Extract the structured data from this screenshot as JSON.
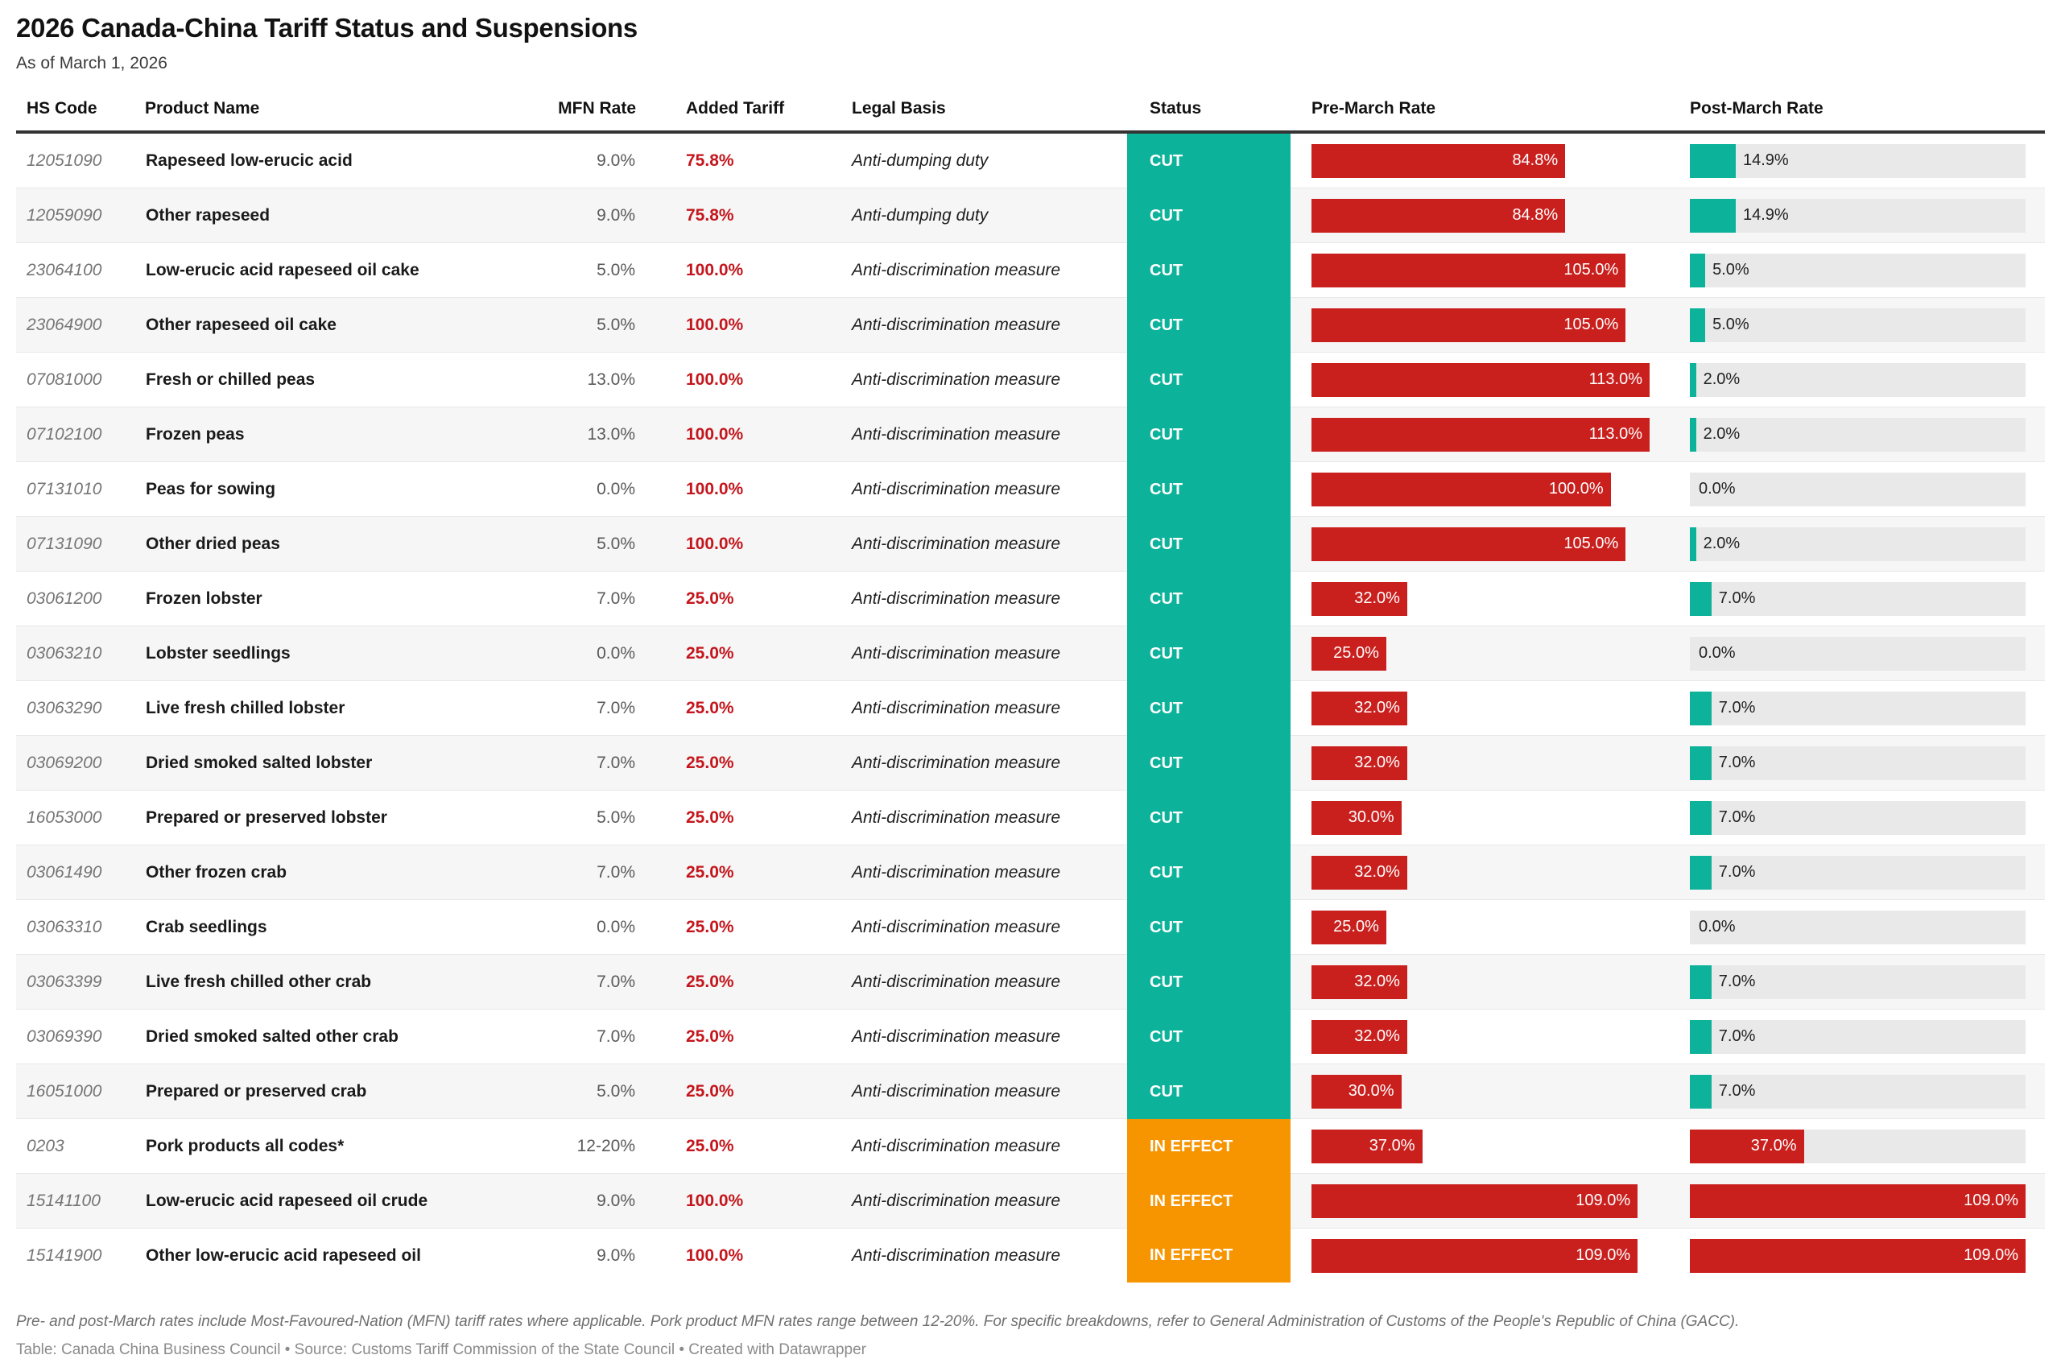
{
  "header": {
    "title": "2026 Canada-China Tariff Status and Suspensions",
    "subtitle": "As of March 1, 2026"
  },
  "colors": {
    "status_cut_teal": "#0DB29A",
    "status_in_effect_orange": "#F79500",
    "bar_red": "#C9201E",
    "added_tariff_text_red": "#C4161C",
    "bar_track_gray": "#E9E9E9",
    "header_rule": "#333333",
    "row_alt_background": "#F6F6F6"
  },
  "chart_data": {
    "type": "table",
    "title": "2026 Canada-China Tariff Status and Suspensions",
    "subtitle": "As of March 1, 2026",
    "columns": [
      "HS Code",
      "Product Name",
      "MFN Rate",
      "Added Tariff",
      "Legal Basis",
      "Status",
      "Pre-March Rate",
      "Post-March Rate"
    ],
    "pre_axis_max": 113,
    "post_axis_max": 109,
    "rows": [
      {
        "hs_code": "12051090",
        "product": "Rapeseed low-erucic acid",
        "mfn_rate": "9.0%",
        "added_tariff": "75.8%",
        "legal_basis": "Anti-dumping duty",
        "status": "CUT",
        "pre_march_rate": 84.8,
        "pre_march_label": "84.8%",
        "post_march_rate": 14.9,
        "post_march_label": "14.9%"
      },
      {
        "hs_code": "12059090",
        "product": "Other rapeseed",
        "mfn_rate": "9.0%",
        "added_tariff": "75.8%",
        "legal_basis": "Anti-dumping duty",
        "status": "CUT",
        "pre_march_rate": 84.8,
        "pre_march_label": "84.8%",
        "post_march_rate": 14.9,
        "post_march_label": "14.9%"
      },
      {
        "hs_code": "23064100",
        "product": "Low-erucic acid rapeseed oil cake",
        "mfn_rate": "5.0%",
        "added_tariff": "100.0%",
        "legal_basis": "Anti-discrimination measure",
        "status": "CUT",
        "pre_march_rate": 105.0,
        "pre_march_label": "105.0%",
        "post_march_rate": 5.0,
        "post_march_label": "5.0%"
      },
      {
        "hs_code": "23064900",
        "product": "Other rapeseed oil cake",
        "mfn_rate": "5.0%",
        "added_tariff": "100.0%",
        "legal_basis": "Anti-discrimination measure",
        "status": "CUT",
        "pre_march_rate": 105.0,
        "pre_march_label": "105.0%",
        "post_march_rate": 5.0,
        "post_march_label": "5.0%"
      },
      {
        "hs_code": "07081000",
        "product": "Fresh or chilled peas",
        "mfn_rate": "13.0%",
        "added_tariff": "100.0%",
        "legal_basis": "Anti-discrimination measure",
        "status": "CUT",
        "pre_march_rate": 113.0,
        "pre_march_label": "113.0%",
        "post_march_rate": 2.0,
        "post_march_label": "2.0%"
      },
      {
        "hs_code": "07102100",
        "product": "Frozen peas",
        "mfn_rate": "13.0%",
        "added_tariff": "100.0%",
        "legal_basis": "Anti-discrimination measure",
        "status": "CUT",
        "pre_march_rate": 113.0,
        "pre_march_label": "113.0%",
        "post_march_rate": 2.0,
        "post_march_label": "2.0%"
      },
      {
        "hs_code": "07131010",
        "product": "Peas for sowing",
        "mfn_rate": "0.0%",
        "added_tariff": "100.0%",
        "legal_basis": "Anti-discrimination measure",
        "status": "CUT",
        "pre_march_rate": 100.0,
        "pre_march_label": "100.0%",
        "post_march_rate": 0.0,
        "post_march_label": "0.0%"
      },
      {
        "hs_code": "07131090",
        "product": "Other dried peas",
        "mfn_rate": "5.0%",
        "added_tariff": "100.0%",
        "legal_basis": "Anti-discrimination measure",
        "status": "CUT",
        "pre_march_rate": 105.0,
        "pre_march_label": "105.0%",
        "post_march_rate": 2.0,
        "post_march_label": "2.0%"
      },
      {
        "hs_code": "03061200",
        "product": "Frozen lobster",
        "mfn_rate": "7.0%",
        "added_tariff": "25.0%",
        "legal_basis": "Anti-discrimination measure",
        "status": "CUT",
        "pre_march_rate": 32.0,
        "pre_march_label": "32.0%",
        "post_march_rate": 7.0,
        "post_march_label": "7.0%"
      },
      {
        "hs_code": "03063210",
        "product": "Lobster seedlings",
        "mfn_rate": "0.0%",
        "added_tariff": "25.0%",
        "legal_basis": "Anti-discrimination measure",
        "status": "CUT",
        "pre_march_rate": 25.0,
        "pre_march_label": "25.0%",
        "post_march_rate": 0.0,
        "post_march_label": "0.0%"
      },
      {
        "hs_code": "03063290",
        "product": "Live fresh chilled lobster",
        "mfn_rate": "7.0%",
        "added_tariff": "25.0%",
        "legal_basis": "Anti-discrimination measure",
        "status": "CUT",
        "pre_march_rate": 32.0,
        "pre_march_label": "32.0%",
        "post_march_rate": 7.0,
        "post_march_label": "7.0%"
      },
      {
        "hs_code": "03069200",
        "product": "Dried smoked salted lobster",
        "mfn_rate": "7.0%",
        "added_tariff": "25.0%",
        "legal_basis": "Anti-discrimination measure",
        "status": "CUT",
        "pre_march_rate": 32.0,
        "pre_march_label": "32.0%",
        "post_march_rate": 7.0,
        "post_march_label": "7.0%"
      },
      {
        "hs_code": "16053000",
        "product": "Prepared or preserved lobster",
        "mfn_rate": "5.0%",
        "added_tariff": "25.0%",
        "legal_basis": "Anti-discrimination measure",
        "status": "CUT",
        "pre_march_rate": 30.0,
        "pre_march_label": "30.0%",
        "post_march_rate": 7.0,
        "post_march_label": "7.0%"
      },
      {
        "hs_code": "03061490",
        "product": "Other frozen crab",
        "mfn_rate": "7.0%",
        "added_tariff": "25.0%",
        "legal_basis": "Anti-discrimination measure",
        "status": "CUT",
        "pre_march_rate": 32.0,
        "pre_march_label": "32.0%",
        "post_march_rate": 7.0,
        "post_march_label": "7.0%"
      },
      {
        "hs_code": "03063310",
        "product": "Crab seedlings",
        "mfn_rate": "0.0%",
        "added_tariff": "25.0%",
        "legal_basis": "Anti-discrimination measure",
        "status": "CUT",
        "pre_march_rate": 25.0,
        "pre_march_label": "25.0%",
        "post_march_rate": 0.0,
        "post_march_label": "0.0%"
      },
      {
        "hs_code": "03063399",
        "product": "Live fresh chilled other crab",
        "mfn_rate": "7.0%",
        "added_tariff": "25.0%",
        "legal_basis": "Anti-discrimination measure",
        "status": "CUT",
        "pre_march_rate": 32.0,
        "pre_march_label": "32.0%",
        "post_march_rate": 7.0,
        "post_march_label": "7.0%"
      },
      {
        "hs_code": "03069390",
        "product": "Dried smoked salted other crab",
        "mfn_rate": "7.0%",
        "added_tariff": "25.0%",
        "legal_basis": "Anti-discrimination measure",
        "status": "CUT",
        "pre_march_rate": 32.0,
        "pre_march_label": "32.0%",
        "post_march_rate": 7.0,
        "post_march_label": "7.0%"
      },
      {
        "hs_code": "16051000",
        "product": "Prepared or preserved crab",
        "mfn_rate": "5.0%",
        "added_tariff": "25.0%",
        "legal_basis": "Anti-discrimination measure",
        "status": "CUT",
        "pre_march_rate": 30.0,
        "pre_march_label": "30.0%",
        "post_march_rate": 7.0,
        "post_march_label": "7.0%"
      },
      {
        "hs_code": "0203",
        "product": "Pork products all codes*",
        "mfn_rate": "12-20%",
        "added_tariff": "25.0%",
        "legal_basis": "Anti-discrimination measure",
        "status": "IN EFFECT",
        "pre_march_rate": 37.0,
        "pre_march_label": "37.0%",
        "post_march_rate": 37.0,
        "post_march_label": "37.0%"
      },
      {
        "hs_code": "15141100",
        "product": "Low-erucic acid rapeseed oil crude",
        "mfn_rate": "9.0%",
        "added_tariff": "100.0%",
        "legal_basis": "Anti-discrimination measure",
        "status": "IN EFFECT",
        "pre_march_rate": 109.0,
        "pre_march_label": "109.0%",
        "post_march_rate": 109.0,
        "post_march_label": "109.0%"
      },
      {
        "hs_code": "15141900",
        "product": "Other low-erucic acid rapeseed oil",
        "mfn_rate": "9.0%",
        "added_tariff": "100.0%",
        "legal_basis": "Anti-discrimination measure",
        "status": "IN EFFECT",
        "pre_march_rate": 109.0,
        "pre_march_label": "109.0%",
        "post_march_rate": 109.0,
        "post_march_label": "109.0%"
      }
    ]
  },
  "footer": {
    "note": "Pre- and post-March rates include Most-Favoured-Nation (MFN) tariff rates where applicable. Pork product MFN rates range between 12-20%. For specific breakdowns, refer to General Administration of Customs of the People's Republic of China (GACC).",
    "attribution": "Table: Canada China Business Council • Source: Customs Tariff Commission of the State Council • Created with Datawrapper"
  }
}
